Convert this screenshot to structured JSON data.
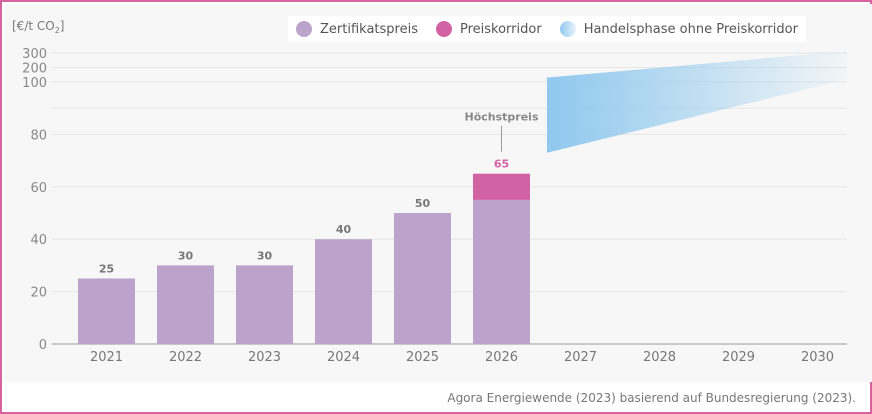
{
  "chart_data": {
    "type": "bar",
    "ylabel": "[€/t CO",
    "ylabel_sub": "2",
    "ylabel_end": "]",
    "categories": [
      "2021",
      "2022",
      "2023",
      "2024",
      "2025",
      "2026",
      "2027",
      "2028",
      "2029",
      "2030"
    ],
    "series": [
      {
        "name": "Zertifikatspreis",
        "values": [
          25,
          30,
          30,
          40,
          50,
          55,
          null,
          null,
          null,
          null
        ],
        "color": "#bba3cb"
      },
      {
        "name": "Preiskorridor",
        "values": [
          0,
          0,
          0,
          0,
          0,
          10,
          null,
          null,
          null,
          null
        ],
        "color": "#d163a4"
      },
      {
        "name": "Handelsphase ohne Preiskorridor",
        "color": "#8fc8ee",
        "range_from": "2027",
        "range_to": "2030"
      }
    ],
    "data_labels": [
      "25",
      "30",
      "30",
      "40",
      "50",
      "65"
    ],
    "annotation": "Höchstpreis",
    "yticks": [
      "0",
      "20",
      "40",
      "60",
      "80",
      "100",
      "200",
      "300"
    ],
    "ylim": [
      0,
      300
    ],
    "grid": true,
    "legend_position": "top"
  },
  "source": "Agora Energiewende (2023) basierend auf Bundesregierung (2023)."
}
